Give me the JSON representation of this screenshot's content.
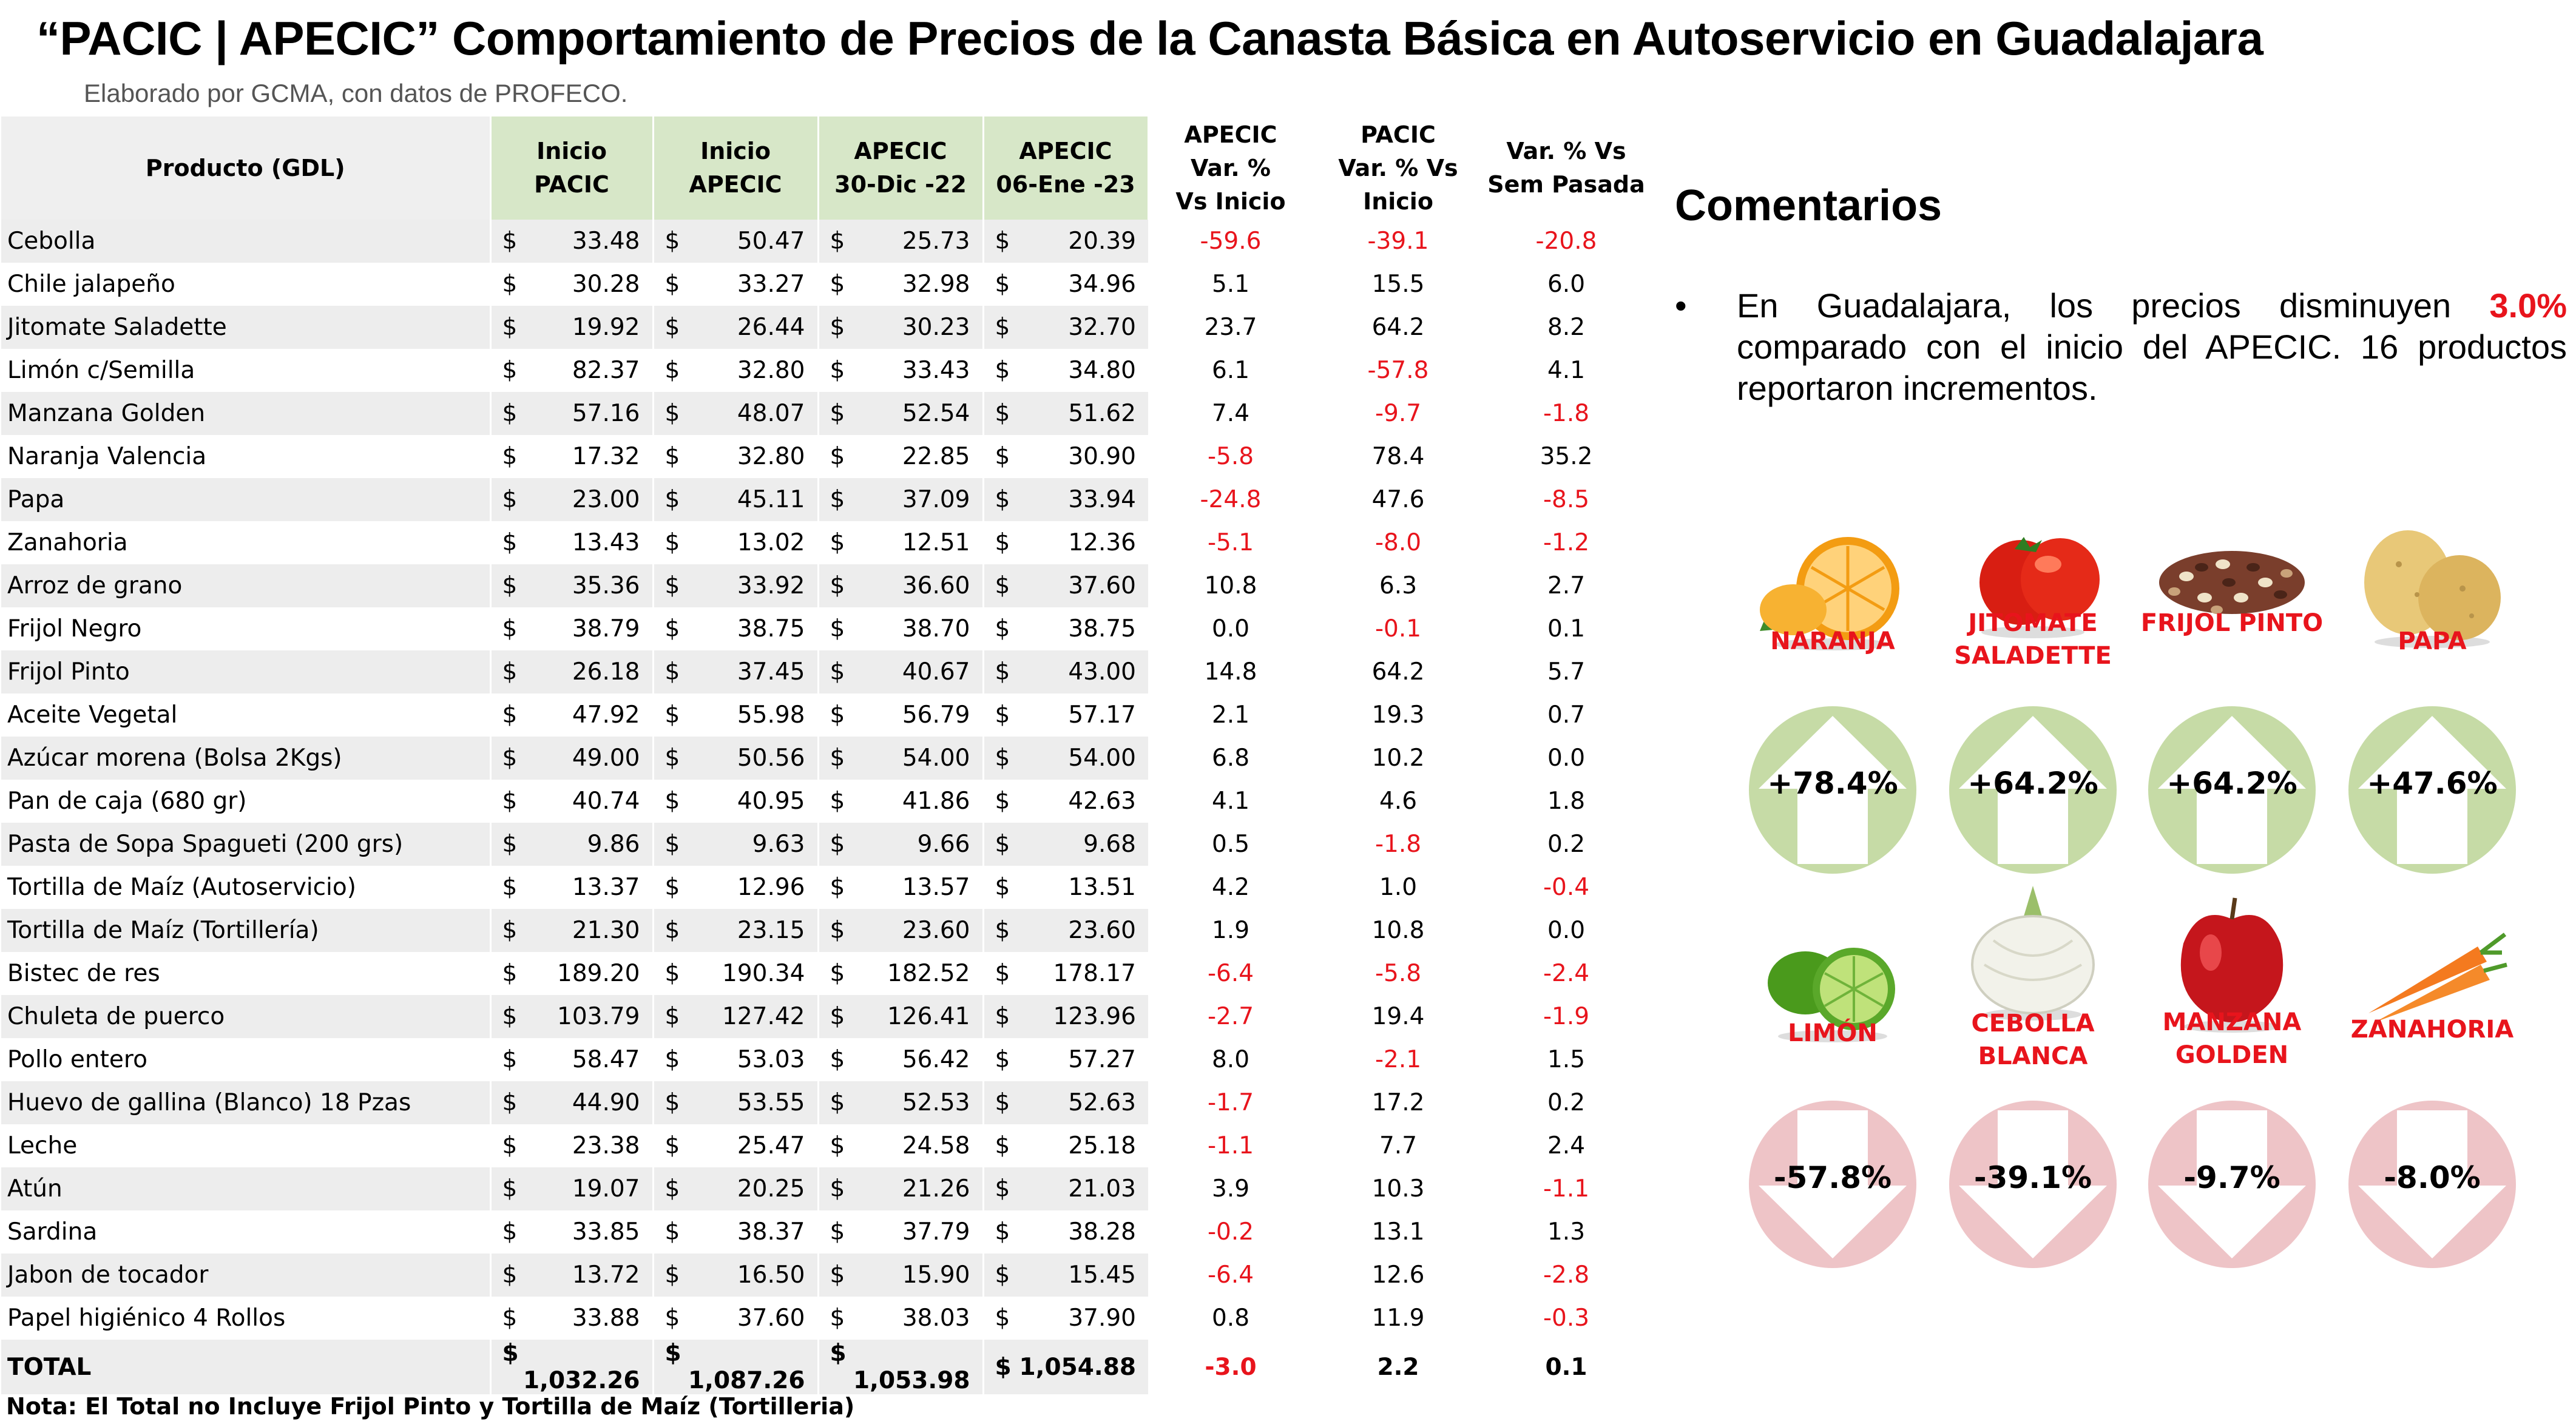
{
  "header": {
    "title": "“PACIC | APECIC” Comportamiento de Precios de la Canasta Básica en Autoservicio en Guadalajara",
    "subtitle": "Elaborado por GCMA, con datos de PROFECO."
  },
  "table": {
    "headers": {
      "producto": "Producto (GDL)",
      "inicio_pacic": [
        "Inicio",
        "PACIC"
      ],
      "inicio_apecic": [
        "Inicio",
        "APECIC"
      ],
      "apecic_30dic": [
        "APECIC",
        "30-Dic -22"
      ],
      "apecic_06ene": [
        "APECIC",
        "06-Ene -23"
      ],
      "var_apecic": [
        "APECIC",
        "Var. %",
        "Vs  Inicio"
      ],
      "var_pacic": [
        "PACIC",
        "Var. % Vs",
        "Inicio"
      ],
      "var_sem": [
        "Var. % Vs",
        "Sem Pasada"
      ]
    },
    "currency_symbol": "$",
    "rows": [
      {
        "producto": "Cebolla",
        "inicio_pacic": "33.48",
        "inicio_apecic": "50.47",
        "apecic_30dic": "25.73",
        "apecic_06ene": "20.39",
        "var_apecic": "-59.6",
        "var_pacic": "-39.1",
        "var_sem": "-20.8"
      },
      {
        "producto": "Chile jalapeño",
        "inicio_pacic": "30.28",
        "inicio_apecic": "33.27",
        "apecic_30dic": "32.98",
        "apecic_06ene": "34.96",
        "var_apecic": "5.1",
        "var_pacic": "15.5",
        "var_sem": "6.0"
      },
      {
        "producto": "Jitomate Saladette",
        "inicio_pacic": "19.92",
        "inicio_apecic": "26.44",
        "apecic_30dic": "30.23",
        "apecic_06ene": "32.70",
        "var_apecic": "23.7",
        "var_pacic": "64.2",
        "var_sem": "8.2"
      },
      {
        "producto": "Limón c/Semilla",
        "inicio_pacic": "82.37",
        "inicio_apecic": "32.80",
        "apecic_30dic": "33.43",
        "apecic_06ene": "34.80",
        "var_apecic": "6.1",
        "var_pacic": "-57.8",
        "var_sem": "4.1"
      },
      {
        "producto": "Manzana Golden",
        "inicio_pacic": "57.16",
        "inicio_apecic": "48.07",
        "apecic_30dic": "52.54",
        "apecic_06ene": "51.62",
        "var_apecic": "7.4",
        "var_pacic": "-9.7",
        "var_sem": "-1.8"
      },
      {
        "producto": "Naranja Valencia",
        "inicio_pacic": "17.32",
        "inicio_apecic": "32.80",
        "apecic_30dic": "22.85",
        "apecic_06ene": "30.90",
        "var_apecic": "-5.8",
        "var_pacic": "78.4",
        "var_sem": "35.2"
      },
      {
        "producto": "Papa",
        "inicio_pacic": "23.00",
        "inicio_apecic": "45.11",
        "apecic_30dic": "37.09",
        "apecic_06ene": "33.94",
        "var_apecic": "-24.8",
        "var_pacic": "47.6",
        "var_sem": "-8.5"
      },
      {
        "producto": "Zanahoria",
        "inicio_pacic": "13.43",
        "inicio_apecic": "13.02",
        "apecic_30dic": "12.51",
        "apecic_06ene": "12.36",
        "var_apecic": "-5.1",
        "var_pacic": "-8.0",
        "var_sem": "-1.2"
      },
      {
        "producto": "Arroz de grano",
        "inicio_pacic": "35.36",
        "inicio_apecic": "33.92",
        "apecic_30dic": "36.60",
        "apecic_06ene": "37.60",
        "var_apecic": "10.8",
        "var_pacic": "6.3",
        "var_sem": "2.7"
      },
      {
        "producto": "Frijol Negro",
        "inicio_pacic": "38.79",
        "inicio_apecic": "38.75",
        "apecic_30dic": "38.70",
        "apecic_06ene": "38.75",
        "var_apecic": "0.0",
        "var_pacic": "-0.1",
        "var_sem": "0.1"
      },
      {
        "producto": "Frijol Pinto",
        "inicio_pacic": "26.18",
        "inicio_apecic": "37.45",
        "apecic_30dic": "40.67",
        "apecic_06ene": "43.00",
        "var_apecic": "14.8",
        "var_pacic": "64.2",
        "var_sem": "5.7"
      },
      {
        "producto": "Aceite Vegetal",
        "inicio_pacic": "47.92",
        "inicio_apecic": "55.98",
        "apecic_30dic": "56.79",
        "apecic_06ene": "57.17",
        "var_apecic": "2.1",
        "var_pacic": "19.3",
        "var_sem": "0.7"
      },
      {
        "producto": "Azúcar morena (Bolsa 2Kgs)",
        "inicio_pacic": "49.00",
        "inicio_apecic": "50.56",
        "apecic_30dic": "54.00",
        "apecic_06ene": "54.00",
        "var_apecic": "6.8",
        "var_pacic": "10.2",
        "var_sem": "0.0"
      },
      {
        "producto": "Pan de caja (680 gr)",
        "inicio_pacic": "40.74",
        "inicio_apecic": "40.95",
        "apecic_30dic": "41.86",
        "apecic_06ene": "42.63",
        "var_apecic": "4.1",
        "var_pacic": "4.6",
        "var_sem": "1.8"
      },
      {
        "producto": "Pasta de Sopa Spagueti (200 grs)",
        "inicio_pacic": "9.86",
        "inicio_apecic": "9.63",
        "apecic_30dic": "9.66",
        "apecic_06ene": "9.68",
        "var_apecic": "0.5",
        "var_pacic": "-1.8",
        "var_sem": "0.2"
      },
      {
        "producto": "Tortilla de Maíz (Autoservicio)",
        "inicio_pacic": "13.37",
        "inicio_apecic": "12.96",
        "apecic_30dic": "13.57",
        "apecic_06ene": "13.51",
        "var_apecic": "4.2",
        "var_pacic": "1.0",
        "var_sem": "-0.4"
      },
      {
        "producto": "Tortilla de Maíz (Tortillería)",
        "inicio_pacic": "21.30",
        "inicio_apecic": "23.15",
        "apecic_30dic": "23.60",
        "apecic_06ene": "23.60",
        "var_apecic": "1.9",
        "var_pacic": "10.8",
        "var_sem": "0.0"
      },
      {
        "producto": "Bistec de res",
        "inicio_pacic": "189.20",
        "inicio_apecic": "190.34",
        "apecic_30dic": "182.52",
        "apecic_06ene": "178.17",
        "var_apecic": "-6.4",
        "var_pacic": "-5.8",
        "var_sem": "-2.4"
      },
      {
        "producto": "Chuleta de puerco",
        "inicio_pacic": "103.79",
        "inicio_apecic": "127.42",
        "apecic_30dic": "126.41",
        "apecic_06ene": "123.96",
        "var_apecic": "-2.7",
        "var_pacic": "19.4",
        "var_sem": "-1.9"
      },
      {
        "producto": "Pollo entero",
        "inicio_pacic": "58.47",
        "inicio_apecic": "53.03",
        "apecic_30dic": "56.42",
        "apecic_06ene": "57.27",
        "var_apecic": "8.0",
        "var_pacic": "-2.1",
        "var_sem": "1.5"
      },
      {
        "producto": "Huevo de gallina (Blanco) 18 Pzas",
        "inicio_pacic": "44.90",
        "inicio_apecic": "53.55",
        "apecic_30dic": "52.53",
        "apecic_06ene": "52.63",
        "var_apecic": "-1.7",
        "var_pacic": "17.2",
        "var_sem": "0.2"
      },
      {
        "producto": "Leche",
        "inicio_pacic": "23.38",
        "inicio_apecic": "25.47",
        "apecic_30dic": "24.58",
        "apecic_06ene": "25.18",
        "var_apecic": "-1.1",
        "var_pacic": "7.7",
        "var_sem": "2.4"
      },
      {
        "producto": "Atún",
        "inicio_pacic": "19.07",
        "inicio_apecic": "20.25",
        "apecic_30dic": "21.26",
        "apecic_06ene": "21.03",
        "var_apecic": "3.9",
        "var_pacic": "10.3",
        "var_sem": "-1.1"
      },
      {
        "producto": "Sardina",
        "inicio_pacic": "33.85",
        "inicio_apecic": "38.37",
        "apecic_30dic": "37.79",
        "apecic_06ene": "38.28",
        "var_apecic": "-0.2",
        "var_pacic": "13.1",
        "var_sem": "1.3"
      },
      {
        "producto": "Jabon de tocador",
        "inicio_pacic": "13.72",
        "inicio_apecic": "16.50",
        "apecic_30dic": "15.90",
        "apecic_06ene": "15.45",
        "var_apecic": "-6.4",
        "var_pacic": "12.6",
        "var_sem": "-2.8"
      },
      {
        "producto": "Papel higiénico 4 Rollos",
        "inicio_pacic": "33.88",
        "inicio_apecic": "37.60",
        "apecic_30dic": "38.03",
        "apecic_06ene": "37.90",
        "var_apecic": "0.8",
        "var_pacic": "11.9",
        "var_sem": "-0.3"
      }
    ],
    "total": {
      "producto": "TOTAL",
      "inicio_pacic": "1,032.26",
      "inicio_apecic": "1,087.26",
      "apecic_30dic": "1,053.98",
      "apecic_06ene": "1,054.88",
      "var_apecic": "-3.0",
      "var_pacic": "2.2",
      "var_sem": "0.1"
    },
    "note": "Nota: El Total no Incluye Frijol Pinto y Tortilla de Maíz (Tortilleria)"
  },
  "comments": {
    "heading": "Comentarios",
    "bullet": "•",
    "text_before": "En Guadalajara, los precios disminuyen ",
    "highlight": "3.0%",
    "text_after": " comparado con el inicio del APECIC. 16 productos reportaron incrementos."
  },
  "cards": {
    "naranja": {
      "label": "NARANJA",
      "value": "+78.4%",
      "direction": "up",
      "icon": "orange-icon"
    },
    "jitomate": {
      "label": "JITOMATE SALADETTE",
      "value": "+64.2%",
      "direction": "up",
      "icon": "tomato-icon"
    },
    "frijol": {
      "label": "FRIJOL PINTO",
      "value": "+64.2%",
      "direction": "up",
      "icon": "beans-icon"
    },
    "papa": {
      "label": "PAPA",
      "value": "+47.6%",
      "direction": "up",
      "icon": "potato-icon"
    },
    "limon": {
      "label": "LIMÓN",
      "value": "-57.8%",
      "direction": "down",
      "icon": "lime-icon"
    },
    "cebolla": {
      "label": "CEBOLLA BLANCA",
      "value": "-39.1%",
      "direction": "down",
      "icon": "onion-icon"
    },
    "manzana": {
      "label": "MANZANA GOLDEN",
      "value": "-9.7%",
      "direction": "down",
      "icon": "apple-icon"
    },
    "zanahoria": {
      "label": "ZANAHORIA",
      "value": "-8.0%",
      "direction": "down",
      "icon": "carrot-icon"
    }
  },
  "colors": {
    "header_green": "#d7e7c8",
    "row_grey": "#ededed",
    "negative_red": "#e8141c",
    "up_circle": "#c6dba6",
    "down_circle": "#eec4c7"
  }
}
